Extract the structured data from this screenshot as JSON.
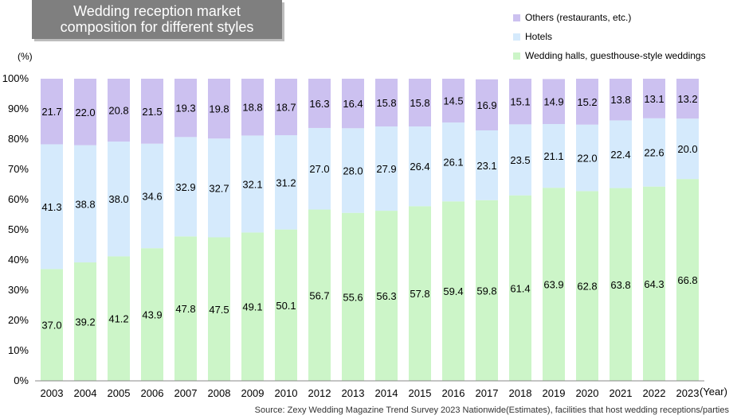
{
  "title": {
    "line1": "Wedding reception market",
    "line2": "composition for different styles"
  },
  "y_unit": "(%)",
  "x_unit": "(Year)",
  "source": "Source: Zexy Wedding Magazine Trend Survey 2023 Nationwide(Estimates), facilities that host wedding receptions/parties",
  "legend": [
    {
      "label": "Others (restaurants, etc.)",
      "color": "#ccc1f0"
    },
    {
      "label": "Hotels",
      "color": "#d5eafc"
    },
    {
      "label": "Wedding halls, guesthouse-style weddings",
      "color": "#ccf5c8"
    }
  ],
  "chart_data": {
    "type": "bar",
    "stacked": true,
    "categories": [
      "2003",
      "2004",
      "2005",
      "2006",
      "2007",
      "2008",
      "2009",
      "2010",
      "2012",
      "2013",
      "2014",
      "2015",
      "2016",
      "2017",
      "2018",
      "2019",
      "2020",
      "2021",
      "2022",
      "2023"
    ],
    "series": [
      {
        "name": "Wedding halls, guesthouse-style weddings",
        "color": "#ccf5c8",
        "values": [
          37.0,
          39.2,
          41.2,
          43.9,
          47.8,
          47.5,
          49.1,
          50.1,
          56.7,
          55.6,
          56.3,
          57.8,
          59.4,
          59.8,
          61.4,
          63.9,
          62.8,
          63.8,
          64.3,
          66.8
        ]
      },
      {
        "name": "Hotels",
        "color": "#d5eafc",
        "values": [
          41.3,
          38.8,
          38.0,
          34.6,
          32.9,
          32.7,
          32.1,
          31.2,
          27.0,
          28.0,
          27.9,
          26.4,
          26.1,
          23.1,
          23.5,
          21.1,
          22.0,
          22.4,
          22.6,
          20.0
        ]
      },
      {
        "name": "Others (restaurants, etc.)",
        "color": "#ccc1f0",
        "values": [
          21.7,
          22.0,
          20.8,
          21.5,
          19.3,
          19.8,
          18.8,
          18.7,
          16.3,
          16.4,
          15.8,
          15.8,
          14.5,
          16.9,
          15.1,
          14.9,
          15.2,
          13.8,
          13.1,
          13.2
        ]
      }
    ],
    "y_ticks": [
      "0%",
      "10%",
      "20%",
      "30%",
      "40%",
      "50%",
      "60%",
      "70%",
      "80%",
      "90%",
      "100%"
    ],
    "ylim": [
      0,
      100
    ],
    "legend_position": "top-right",
    "grid": false
  }
}
